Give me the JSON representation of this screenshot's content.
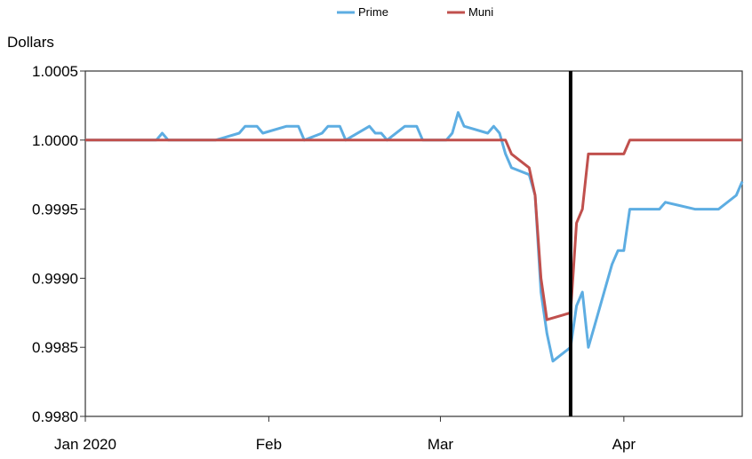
{
  "chart_data": {
    "type": "line",
    "title": "",
    "ylabel": "Dollars",
    "ylim": [
      0.998,
      1.0005
    ],
    "yticks": [
      "1.0005",
      "1.0000",
      "0.9995",
      "0.9990",
      "0.9985",
      "0.9980"
    ],
    "ytick_values": [
      1.0005,
      1.0,
      0.9995,
      0.999,
      0.9985,
      0.998
    ],
    "xlim": [
      "2020-01-01",
      "2020-04-21"
    ],
    "xticks": [
      {
        "label": "Jan 2020",
        "date": "2020-01-01"
      },
      {
        "label": "Feb",
        "date": "2020-02-01"
      },
      {
        "label": "Mar",
        "date": "2020-03-01"
      },
      {
        "label": "Apr",
        "date": "2020-04-01"
      }
    ],
    "legend_position": "top-center",
    "grid": false,
    "vertical_marker": {
      "date": "2020-03-23",
      "color": "#000000"
    },
    "series": [
      {
        "name": "Prime",
        "color": "#5dade2",
        "points": [
          [
            "2020-01-01",
            1.0
          ],
          [
            "2020-01-13",
            1.0
          ],
          [
            "2020-01-14",
            1.00005
          ],
          [
            "2020-01-15",
            1.0
          ],
          [
            "2020-01-23",
            1.0
          ],
          [
            "2020-01-27",
            1.00005
          ],
          [
            "2020-01-28",
            1.0001
          ],
          [
            "2020-01-30",
            1.0001
          ],
          [
            "2020-01-31",
            1.00005
          ],
          [
            "2020-02-04",
            1.0001
          ],
          [
            "2020-02-06",
            1.0001
          ],
          [
            "2020-02-07",
            1.0
          ],
          [
            "2020-02-10",
            1.00005
          ],
          [
            "2020-02-11",
            1.0001
          ],
          [
            "2020-02-13",
            1.0001
          ],
          [
            "2020-02-14",
            1.0
          ],
          [
            "2020-02-18",
            1.0001
          ],
          [
            "2020-02-19",
            1.00005
          ],
          [
            "2020-02-20",
            1.00005
          ],
          [
            "2020-02-21",
            1.0
          ],
          [
            "2020-02-24",
            1.0001
          ],
          [
            "2020-02-25",
            1.0001
          ],
          [
            "2020-02-26",
            1.0001
          ],
          [
            "2020-02-27",
            1.0
          ],
          [
            "2020-03-02",
            1.0
          ],
          [
            "2020-03-03",
            1.00005
          ],
          [
            "2020-03-04",
            1.0002
          ],
          [
            "2020-03-05",
            1.0001
          ],
          [
            "2020-03-09",
            1.00005
          ],
          [
            "2020-03-10",
            1.0001
          ],
          [
            "2020-03-11",
            1.00005
          ],
          [
            "2020-03-12",
            0.9999
          ],
          [
            "2020-03-13",
            0.9998
          ],
          [
            "2020-03-16",
            0.99975
          ],
          [
            "2020-03-17",
            0.9996
          ],
          [
            "2020-03-18",
            0.9989
          ],
          [
            "2020-03-19",
            0.9986
          ],
          [
            "2020-03-20",
            0.9984
          ],
          [
            "2020-03-23",
            0.9985
          ],
          [
            "2020-03-24",
            0.9988
          ],
          [
            "2020-03-25",
            0.9989
          ],
          [
            "2020-03-26",
            0.9985
          ],
          [
            "2020-03-27",
            0.99865
          ],
          [
            "2020-03-30",
            0.9991
          ],
          [
            "2020-03-31",
            0.9992
          ],
          [
            "2020-04-01",
            0.9992
          ],
          [
            "2020-04-02",
            0.9995
          ],
          [
            "2020-04-07",
            0.9995
          ],
          [
            "2020-04-08",
            0.99955
          ],
          [
            "2020-04-13",
            0.9995
          ],
          [
            "2020-04-17",
            0.9995
          ],
          [
            "2020-04-20",
            0.9996
          ],
          [
            "2020-04-21",
            0.9997
          ]
        ]
      },
      {
        "name": "Muni",
        "color": "#c0504d",
        "points": [
          [
            "2020-01-01",
            1.0
          ],
          [
            "2020-03-12",
            1.0
          ],
          [
            "2020-03-13",
            0.9999
          ],
          [
            "2020-03-16",
            0.9998
          ],
          [
            "2020-03-17",
            0.9996
          ],
          [
            "2020-03-18",
            0.999
          ],
          [
            "2020-03-19",
            0.9987
          ],
          [
            "2020-03-23",
            0.99875
          ],
          [
            "2020-03-24",
            0.9994
          ],
          [
            "2020-03-25",
            0.9995
          ],
          [
            "2020-03-26",
            0.9999
          ],
          [
            "2020-03-31",
            0.9999
          ],
          [
            "2020-04-01",
            0.9999
          ],
          [
            "2020-04-02",
            1.0
          ],
          [
            "2020-04-21",
            1.0
          ]
        ]
      }
    ]
  }
}
